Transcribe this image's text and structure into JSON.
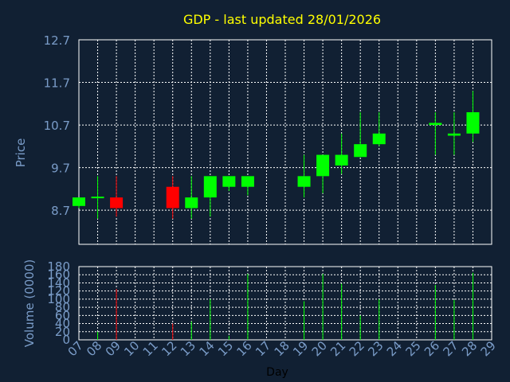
{
  "chart_data": [
    {
      "type": "candlestick",
      "title": "GDP - last updated 28/01/2026",
      "ylabel": "Price",
      "ylim": [
        7.9,
        12.7
      ],
      "yticks": [
        "8.7",
        "9.7",
        "10.7",
        "11.7",
        "12.7"
      ],
      "yticks_values": [
        8.7,
        9.7,
        10.7,
        11.7,
        12.7
      ],
      "grid": true,
      "colors": {
        "up": "#00ff00",
        "down": "#ff0000",
        "background": "#112033",
        "grid": "#ffffff",
        "axis_text": "#7a9cc8",
        "title": "#ffff00"
      },
      "candles": [
        {
          "day": 7,
          "open": 8.8,
          "high": 9.0,
          "low": 8.75,
          "close": 9.0,
          "dir": "up"
        },
        {
          "day": 8,
          "open": 8.98,
          "high": 9.5,
          "low": 8.5,
          "close": 9.0,
          "dir": "up"
        },
        {
          "day": 9,
          "open": 9.0,
          "high": 9.5,
          "low": 8.55,
          "close": 8.75,
          "dir": "down"
        },
        {
          "day": 12,
          "open": 9.25,
          "high": 9.5,
          "low": 8.5,
          "close": 8.75,
          "dir": "down"
        },
        {
          "day": 13,
          "open": 8.75,
          "high": 9.5,
          "low": 8.5,
          "close": 9.0,
          "dir": "up"
        },
        {
          "day": 14,
          "open": 9.0,
          "high": 9.5,
          "low": 8.55,
          "close": 9.5,
          "dir": "up"
        },
        {
          "day": 15,
          "open": 9.25,
          "high": 9.5,
          "low": 9.15,
          "close": 9.5,
          "dir": "up"
        },
        {
          "day": 16,
          "open": 9.25,
          "high": 9.5,
          "low": 9.05,
          "close": 9.5,
          "dir": "up"
        },
        {
          "day": 19,
          "open": 9.25,
          "high": 10.0,
          "low": 9.0,
          "close": 9.5,
          "dir": "up"
        },
        {
          "day": 20,
          "open": 9.5,
          "high": 10.0,
          "low": 9.1,
          "close": 10.0,
          "dir": "up"
        },
        {
          "day": 21,
          "open": 9.75,
          "high": 10.5,
          "low": 9.55,
          "close": 10.0,
          "dir": "up"
        },
        {
          "day": 22,
          "open": 9.95,
          "high": 11.0,
          "low": 9.95,
          "close": 10.25,
          "dir": "up"
        },
        {
          "day": 23,
          "open": 10.25,
          "high": 11.0,
          "low": 10.2,
          "close": 10.5,
          "dir": "up"
        },
        {
          "day": 26,
          "open": 10.7,
          "high": 11.0,
          "low": 10.0,
          "close": 10.75,
          "dir": "up"
        },
        {
          "day": 27,
          "open": 10.45,
          "high": 11.0,
          "low": 10.0,
          "close": 10.5,
          "dir": "up"
        },
        {
          "day": 28,
          "open": 10.5,
          "high": 11.5,
          "low": 10.3,
          "close": 11.0,
          "dir": "up"
        }
      ]
    },
    {
      "type": "bar",
      "ylabel": "Volume (0000)",
      "xlabel": "Day",
      "ylim": [
        0,
        180
      ],
      "yticks": [
        "0",
        "20",
        "40",
        "60",
        "80",
        "100",
        "120",
        "140",
        "160",
        "180"
      ],
      "yticks_values": [
        0,
        20,
        40,
        60,
        80,
        100,
        120,
        140,
        160,
        180
      ],
      "x_ticks": [
        "07",
        "08",
        "09",
        "10",
        "11",
        "12",
        "13",
        "14",
        "15",
        "16",
        "17",
        "18",
        "19",
        "20",
        "21",
        "22",
        "23",
        "24",
        "25",
        "26",
        "27",
        "28",
        "29"
      ],
      "x_range": [
        7,
        29
      ],
      "bars": [
        {
          "day": 7,
          "value": 0,
          "dir": "up"
        },
        {
          "day": 8,
          "value": 20,
          "dir": "up"
        },
        {
          "day": 9,
          "value": 125,
          "dir": "down"
        },
        {
          "day": 12,
          "value": 40,
          "dir": "down"
        },
        {
          "day": 13,
          "value": 45,
          "dir": "up"
        },
        {
          "day": 14,
          "value": 100,
          "dir": "up"
        },
        {
          "day": 15,
          "value": 10,
          "dir": "up"
        },
        {
          "day": 16,
          "value": 162,
          "dir": "up"
        },
        {
          "day": 19,
          "value": 95,
          "dir": "up"
        },
        {
          "day": 20,
          "value": 162,
          "dir": "up"
        },
        {
          "day": 21,
          "value": 138,
          "dir": "up"
        },
        {
          "day": 22,
          "value": 60,
          "dir": "up"
        },
        {
          "day": 23,
          "value": 100,
          "dir": "up"
        },
        {
          "day": 26,
          "value": 135,
          "dir": "up"
        },
        {
          "day": 27,
          "value": 98,
          "dir": "up"
        },
        {
          "day": 28,
          "value": 165,
          "dir": "up"
        }
      ]
    }
  ]
}
